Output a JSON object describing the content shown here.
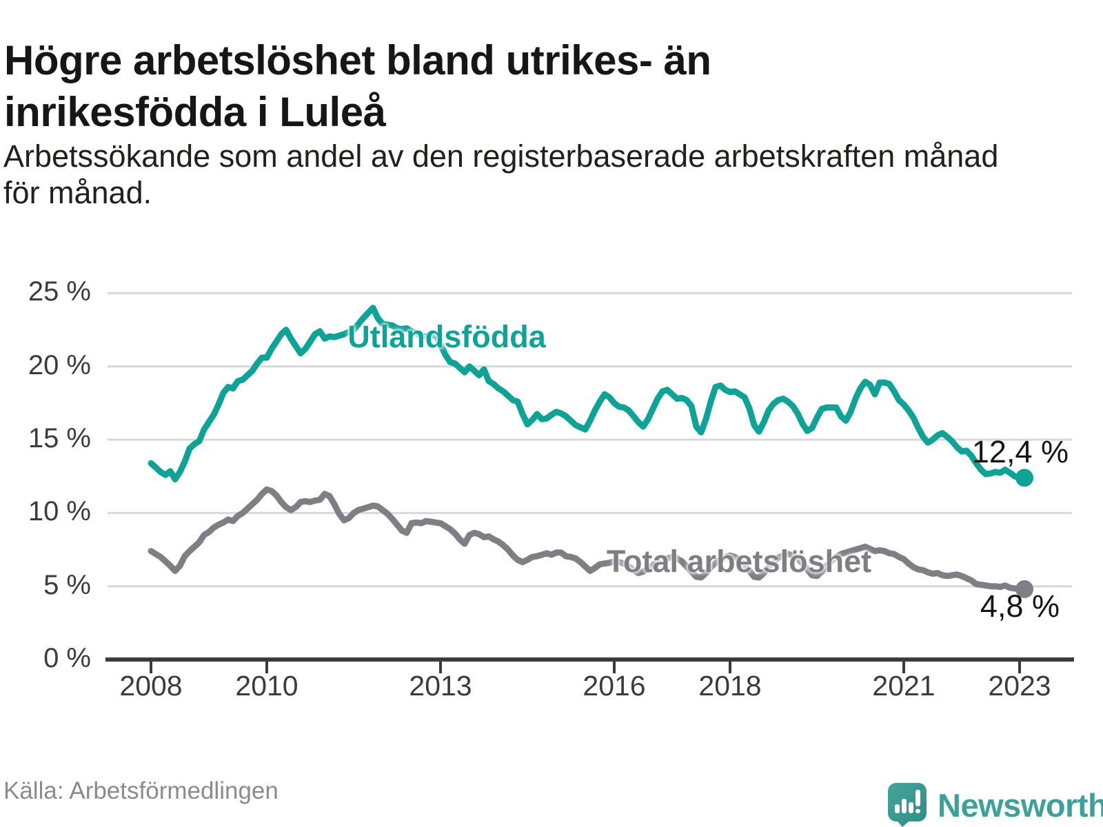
{
  "header": {
    "title_lines": [
      "Högre arbetslöshet bland utrikes- än",
      "inrikesfödda i Luleå"
    ],
    "subtitle_lines": [
      "Arbetssökande som andel av den registerbaserade arbetskraften månad",
      "för månad."
    ]
  },
  "footer": {
    "source": "Källa: Arbetsförmedlingen",
    "brand": "Newsworthy"
  },
  "colors": {
    "series_foreign_born": "#10a296",
    "series_total": "#7e7e84",
    "axis": "#3b3b3b",
    "gridline": "#d8d8d8",
    "tick_label": "#3b3b3b",
    "end_label": "#151515",
    "title": "#161616",
    "subtitle": "#20201e",
    "source_text": "#8b8b8b",
    "brand_teal": "#3ea099"
  },
  "chart_data": {
    "type": "line",
    "title": "Högre arbetslöshet bland utrikes- än inrikesfödda i Luleå",
    "subtitle": "Arbetssökande som andel av den registerbaserade arbetskraften månad för månad.",
    "unit": "%",
    "frequency": "monthly",
    "x_start": "2008-01",
    "x_end": "2023-02",
    "ylim": [
      0,
      25
    ],
    "grid": "horizontal",
    "legend_position": "inline-labels",
    "y_ticks": [
      {
        "value": 0,
        "label": "0 %"
      },
      {
        "value": 5,
        "label": "5 %"
      },
      {
        "value": 10,
        "label": "10 %"
      },
      {
        "value": 15,
        "label": "15 %"
      },
      {
        "value": 20,
        "label": "20 %"
      },
      {
        "value": 25,
        "label": "25 %"
      }
    ],
    "x_ticks": [
      {
        "year": 2008,
        "label": "2008"
      },
      {
        "year": 2010,
        "label": "2010"
      },
      {
        "year": 2013,
        "label": "2013"
      },
      {
        "year": 2016,
        "label": "2016"
      },
      {
        "year": 2018,
        "label": "2018"
      },
      {
        "year": 2021,
        "label": "2021"
      },
      {
        "year": 2023,
        "label": "2023"
      }
    ],
    "series": [
      {
        "name": "Utlandsfödda",
        "color": "#10a296",
        "end_label": "12,4 %",
        "end_value": 12.4,
        "values": [
          13.4,
          13.1,
          12.8,
          12.6,
          12.85,
          12.3,
          12.8,
          13.5,
          14.4,
          14.7,
          14.9,
          15.7,
          16.2,
          16.7,
          17.4,
          18.2,
          18.6,
          18.5,
          19.0,
          19.1,
          19.4,
          19.7,
          20.2,
          20.6,
          20.6,
          21.2,
          21.7,
          22.2,
          22.5,
          21.9,
          21.4,
          20.9,
          21.2,
          21.7,
          22.2,
          22.4,
          21.9,
          22.05,
          22.0,
          22.1,
          22.2,
          22.35,
          22.5,
          22.9,
          23.3,
          23.65,
          24.0,
          23.3,
          22.9,
          22.85,
          22.8,
          22.6,
          22.55,
          22.6,
          22.4,
          22.25,
          22.1,
          22.05,
          22.1,
          22.2,
          21.5,
          20.8,
          20.3,
          20.2,
          19.9,
          19.6,
          20.0,
          19.7,
          19.4,
          19.8,
          19.0,
          18.8,
          18.5,
          18.3,
          18.0,
          17.7,
          17.6,
          16.75,
          16.05,
          16.35,
          16.75,
          16.4,
          16.45,
          16.7,
          16.9,
          16.8,
          16.6,
          16.3,
          16.0,
          15.85,
          15.7,
          16.3,
          17.0,
          17.6,
          18.1,
          17.9,
          17.5,
          17.25,
          17.2,
          17.0,
          16.6,
          16.2,
          15.9,
          16.4,
          17.1,
          17.8,
          18.3,
          18.4,
          18.1,
          17.8,
          17.85,
          17.7,
          17.3,
          15.9,
          15.5,
          16.4,
          17.6,
          18.6,
          18.7,
          18.4,
          18.25,
          18.3,
          18.1,
          17.9,
          17.15,
          16.0,
          15.55,
          16.2,
          17.0,
          17.45,
          17.7,
          17.8,
          17.6,
          17.3,
          16.8,
          16.1,
          15.6,
          15.8,
          16.5,
          17.1,
          17.2,
          17.2,
          17.2,
          16.6,
          16.3,
          16.9,
          17.8,
          18.5,
          18.95,
          18.75,
          18.1,
          18.9,
          18.9,
          18.8,
          18.3,
          17.7,
          17.4,
          17.0,
          16.5,
          15.8,
          15.2,
          14.8,
          15.0,
          15.3,
          15.45,
          15.2,
          14.9,
          14.5,
          14.2,
          14.25,
          13.9,
          13.4,
          12.95,
          12.65,
          12.7,
          12.8,
          12.75,
          12.95,
          12.75,
          12.5,
          12.4,
          12.4
        ]
      },
      {
        "name": "Total arbetslöshet",
        "color": "#7e7e84",
        "end_label": "4,8 %",
        "end_value": 4.8,
        "values": [
          7.4,
          7.2,
          7.0,
          6.7,
          6.4,
          6.05,
          6.4,
          7.05,
          7.4,
          7.7,
          8.0,
          8.5,
          8.7,
          9.0,
          9.2,
          9.35,
          9.55,
          9.45,
          9.8,
          10.0,
          10.3,
          10.6,
          10.9,
          11.3,
          11.6,
          11.5,
          11.2,
          10.75,
          10.4,
          10.2,
          10.4,
          10.75,
          10.8,
          10.75,
          10.85,
          10.9,
          11.3,
          11.15,
          10.6,
          9.95,
          9.5,
          9.65,
          10.0,
          10.2,
          10.3,
          10.4,
          10.5,
          10.45,
          10.2,
          9.95,
          9.6,
          9.2,
          8.8,
          8.65,
          9.3,
          9.35,
          9.3,
          9.45,
          9.4,
          9.35,
          9.3,
          9.1,
          8.9,
          8.6,
          8.2,
          7.9,
          8.5,
          8.65,
          8.55,
          8.35,
          8.4,
          8.2,
          8.05,
          7.8,
          7.5,
          7.1,
          6.8,
          6.65,
          6.8,
          7.0,
          7.05,
          7.15,
          7.25,
          7.15,
          7.3,
          7.3,
          7.05,
          7.0,
          6.9,
          6.65,
          6.35,
          6.05,
          6.25,
          6.5,
          6.55,
          6.6,
          6.7,
          6.65,
          6.55,
          6.35,
          6.1,
          5.9,
          6.0,
          6.2,
          6.45,
          6.6,
          6.75,
          6.9,
          7.0,
          6.9,
          6.7,
          6.35,
          6.0,
          5.65,
          5.6,
          5.9,
          6.3,
          6.6,
          6.85,
          7.0,
          7.1,
          7.0,
          6.8,
          6.45,
          6.05,
          5.65,
          5.6,
          5.9,
          6.3,
          6.65,
          6.95,
          7.1,
          7.2,
          7.1,
          6.9,
          6.55,
          6.15,
          5.75,
          5.7,
          6.0,
          6.4,
          6.75,
          7.0,
          7.2,
          7.3,
          7.4,
          7.5,
          7.6,
          7.7,
          7.55,
          7.4,
          7.45,
          7.4,
          7.25,
          7.2,
          7.0,
          6.85,
          6.55,
          6.3,
          6.15,
          6.1,
          5.95,
          5.85,
          5.9,
          5.75,
          5.7,
          5.75,
          5.8,
          5.7,
          5.55,
          5.4,
          5.15,
          5.1,
          5.05,
          5.0,
          5.0,
          4.95,
          5.05,
          4.9,
          4.85,
          4.8,
          4.8
        ]
      }
    ]
  }
}
